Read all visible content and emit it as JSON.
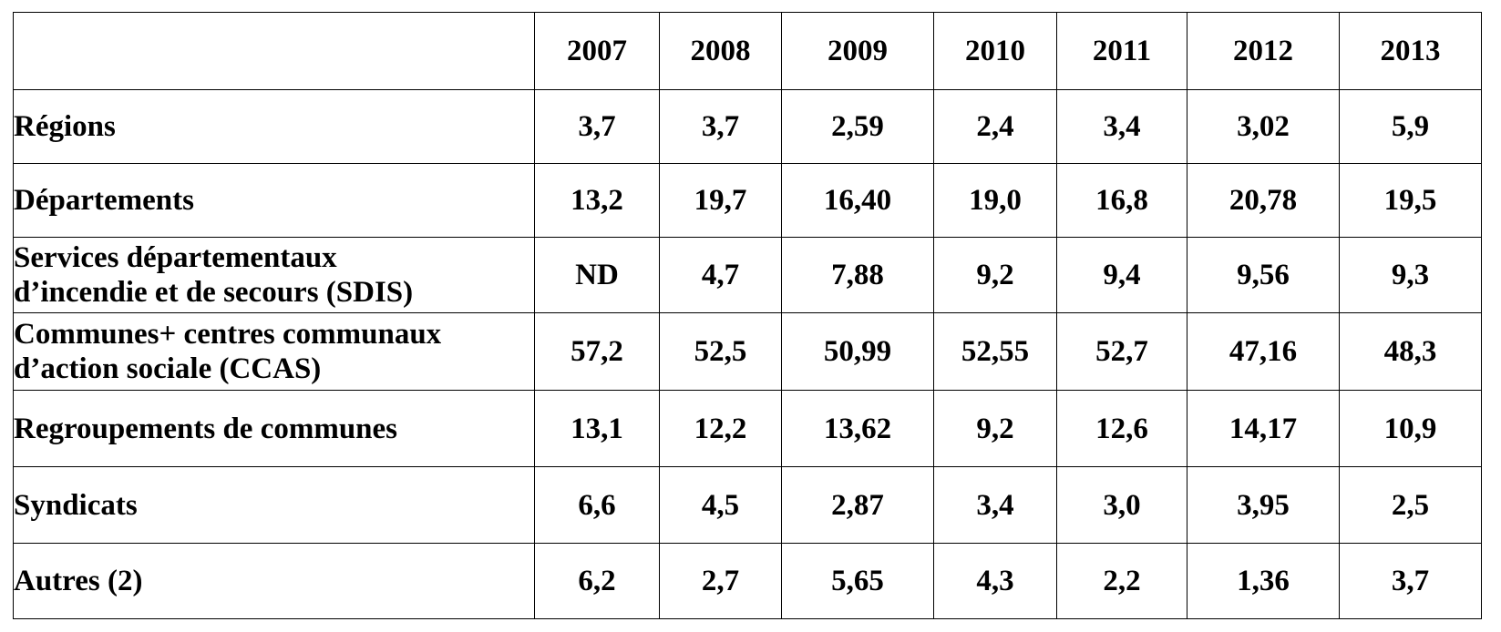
{
  "table": {
    "corner": "",
    "years": [
      "2007",
      "2008",
      "2009",
      "2010",
      "2011",
      "2012",
      "2013"
    ],
    "rows": [
      {
        "label_lines": [
          "Régions"
        ],
        "values": [
          "3,7",
          "3,7",
          "2,59",
          "2,4",
          "3,4",
          "3,02",
          "5,9"
        ]
      },
      {
        "label_lines": [
          "Départements"
        ],
        "values": [
          "13,2",
          "19,7",
          "16,40",
          "19,0",
          "16,8",
          "20,78",
          "19,5"
        ]
      },
      {
        "label_lines": [
          "Services départementaux",
          "d’incendie et de secours (SDIS)"
        ],
        "values": [
          "ND",
          "4,7",
          "7,88",
          "9,2",
          "9,4",
          "9,56",
          "9,3"
        ]
      },
      {
        "label_lines": [
          "Communes+ centres communaux",
          "d’action sociale (CCAS)"
        ],
        "values": [
          "57,2",
          "52,5",
          "50,99",
          "52,55",
          "52,7",
          "47,16",
          "48,3"
        ]
      },
      {
        "label_lines": [
          "Regroupements de communes"
        ],
        "values": [
          "13,1",
          "12,2",
          "13,62",
          "9,2",
          "12,6",
          "14,17",
          "10,9"
        ]
      },
      {
        "label_lines": [
          "Syndicats"
        ],
        "values": [
          "6,6",
          "4,5",
          "2,87",
          "3,4",
          "3,0",
          "3,95",
          "2,5"
        ]
      },
      {
        "label_lines": [
          "Autres (2)"
        ],
        "values": [
          "6,2",
          "2,7",
          "5,65",
          "4,3",
          "2,2",
          "1,36",
          "3,7"
        ]
      }
    ]
  }
}
